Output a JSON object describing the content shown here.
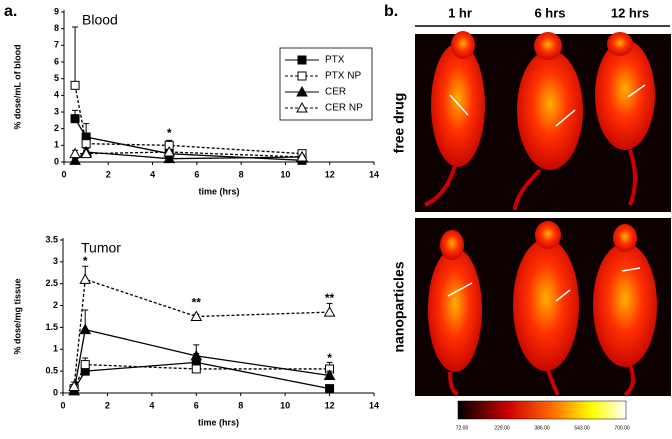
{
  "panel_a": {
    "label": "a."
  },
  "panel_b": {
    "label": "b.",
    "columns": [
      "1 hr",
      "6 hrs",
      "12 hrs"
    ],
    "rows": [
      "free drug",
      "nanoparticles"
    ],
    "colorbar": [
      "72.00",
      "229.00",
      "386.00",
      "543.00",
      "700.00"
    ]
  },
  "chart_data": [
    {
      "type": "line",
      "title": "Blood",
      "x_label": "time (hrs)",
      "y_label": "% dose/mL of blood",
      "x": [
        0.5,
        1,
        4.75,
        10.75
      ],
      "xlim": [
        0,
        14
      ],
      "xticks": [
        0,
        2,
        4,
        6,
        8,
        10,
        12,
        14
      ],
      "ylim": [
        0,
        9
      ],
      "yticks": [
        0,
        1,
        2,
        3,
        4,
        5,
        6,
        7,
        8,
        9
      ],
      "legend": "right",
      "series": [
        {
          "name": "PTX",
          "color": "#000000",
          "marker": "square-filled",
          "dashed": false,
          "values": [
            2.6,
            1.5,
            0.5,
            0.1
          ],
          "errors": [
            0.5,
            0.8,
            0.2,
            0.1
          ]
        },
        {
          "name": "PTX NP",
          "color": "#000000",
          "marker": "square-open",
          "dashed": true,
          "values": [
            4.6,
            1.1,
            1.0,
            0.5
          ],
          "errors": [
            3.5,
            0.4,
            0.3,
            0.1
          ]
        },
        {
          "name": "CER",
          "color": "#000000",
          "marker": "triangle-filled",
          "dashed": false,
          "values": [
            0.1,
            0.6,
            0.2,
            0.3
          ],
          "errors": [
            0.1,
            0.2,
            0.1,
            0.1
          ]
        },
        {
          "name": "CER NP",
          "color": "#000000",
          "marker": "triangle-open",
          "dashed": true,
          "values": [
            0.5,
            0.5,
            0.6,
            0.3
          ],
          "errors": [
            0.2,
            0.2,
            0.1,
            0.1
          ]
        }
      ],
      "annotations": [
        {
          "text": "*",
          "x": 4.75,
          "y": 1.7
        }
      ]
    },
    {
      "type": "line",
      "title": "Tumor",
      "x_label": "time (hrs)",
      "y_label": "% dose/mg tissue",
      "x": [
        0.5,
        1,
        6,
        12
      ],
      "xlim": [
        0,
        14
      ],
      "xticks": [
        0,
        2,
        4,
        6,
        8,
        10,
        12,
        14
      ],
      "ylim": [
        0,
        3.5
      ],
      "yticks": [
        0,
        0.5,
        1,
        1.5,
        2,
        2.5,
        3,
        3.5
      ],
      "legend": "none",
      "series": [
        {
          "color": "#000000",
          "marker": "square-filled",
          "dashed": false,
          "values": [
            0.08,
            0.5,
            0.7,
            0.1
          ],
          "errors": [
            0.05,
            0.1,
            0.2,
            0.05
          ]
        },
        {
          "color": "#000000",
          "marker": "square-open",
          "dashed": true,
          "values": [
            0.1,
            0.65,
            0.55,
            0.55
          ],
          "errors": [
            0.05,
            0.15,
            0.1,
            0.15
          ]
        },
        {
          "color": "#000000",
          "marker": "triangle-filled",
          "dashed": false,
          "values": [
            0.05,
            1.45,
            0.85,
            0.4
          ],
          "errors": [
            0.05,
            0.45,
            0.25,
            0.1
          ]
        },
        {
          "color": "#000000",
          "marker": "triangle-open",
          "dashed": true,
          "values": [
            0.15,
            2.6,
            1.75,
            1.85
          ],
          "errors": [
            0.1,
            0.3,
            0.05,
            0.2
          ]
        }
      ],
      "annotations": [
        {
          "text": "*",
          "x": 1,
          "y": 3.0
        },
        {
          "text": "**",
          "x": 6,
          "y": 2.05
        },
        {
          "text": "**",
          "x": 12,
          "y": 2.15
        },
        {
          "text": "*",
          "x": 12,
          "y": 0.78
        }
      ]
    }
  ]
}
